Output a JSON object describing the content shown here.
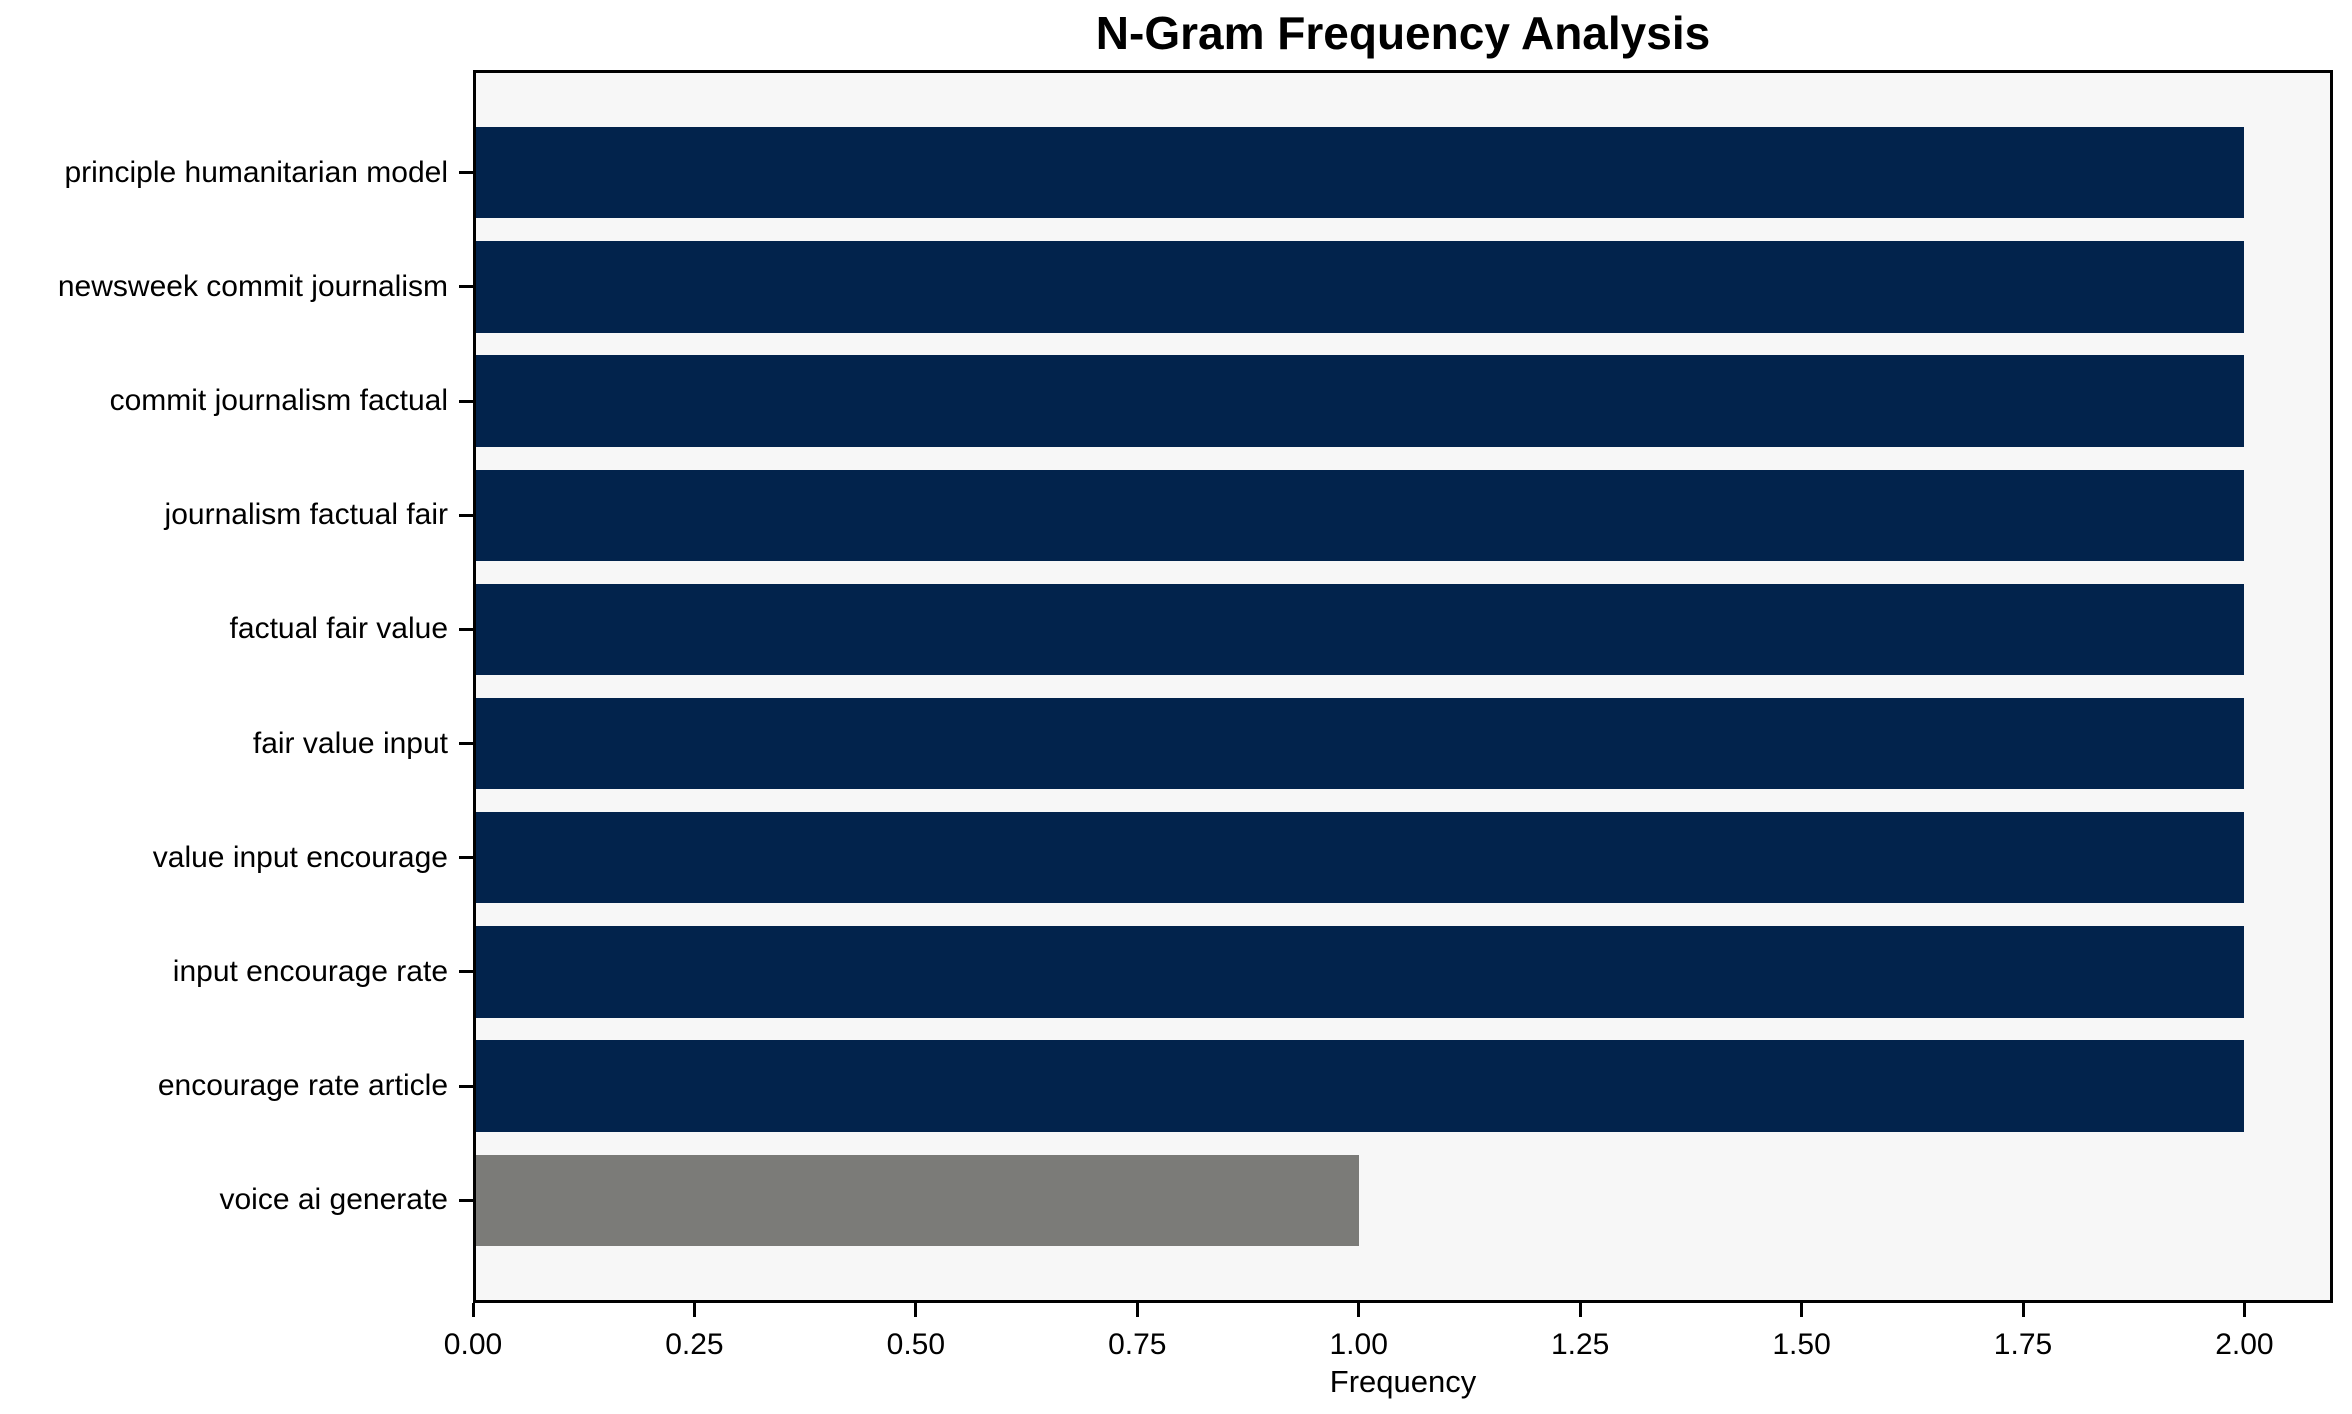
{
  "chart_data": {
    "type": "bar",
    "orientation": "horizontal",
    "title": "N-Gram Frequency Analysis",
    "xlabel": "Frequency",
    "ylabel": "",
    "categories": [
      "principle humanitarian model",
      "newsweek commit journalism",
      "commit journalism factual",
      "journalism factual fair",
      "factual fair value",
      "fair value input",
      "value input encourage",
      "input encourage rate",
      "encourage rate article",
      "voice ai generate"
    ],
    "values": [
      2,
      2,
      2,
      2,
      2,
      2,
      2,
      2,
      2,
      1
    ],
    "bar_colors": [
      "#02234C",
      "#02234C",
      "#02234C",
      "#02234C",
      "#02234C",
      "#02234C",
      "#02234C",
      "#02234C",
      "#02234C",
      "#7B7B78"
    ],
    "xlim": [
      0,
      2.1
    ],
    "xticks": [
      0,
      0.25,
      0.5,
      0.75,
      1,
      1.25,
      1.5,
      1.75,
      2
    ],
    "xtick_labels": [
      "0.00",
      "0.25",
      "0.50",
      "0.75",
      "1.00",
      "1.25",
      "1.50",
      "1.75",
      "2.00"
    ],
    "grid": "off",
    "legend": "none",
    "colors": {
      "bar_primary": "#02234C",
      "bar_highlight": "#7B7B78",
      "plot_background": "#F7F7F7",
      "figure_background": "#FFFFFF",
      "spine": "#000000",
      "text": "#000000"
    }
  }
}
